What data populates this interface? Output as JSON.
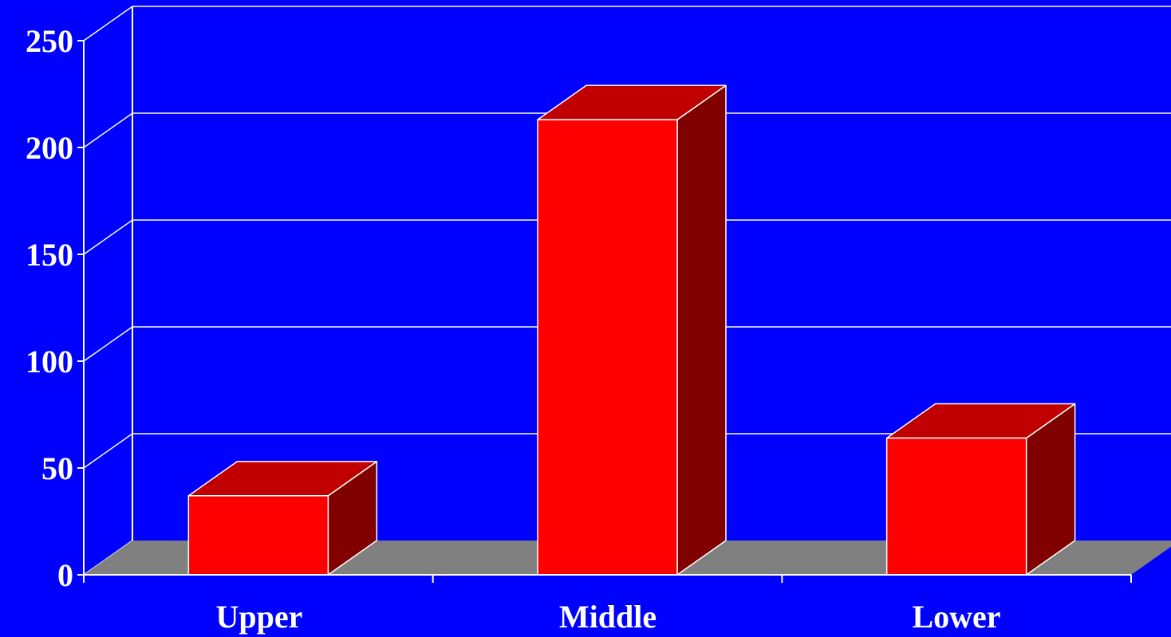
{
  "chart_data": {
    "type": "bar",
    "style": "3d",
    "categories": [
      "Upper",
      "Middle",
      "Lower"
    ],
    "values": [
      37,
      213,
      64
    ],
    "ylim": [
      0,
      250
    ],
    "yticks": [
      "0",
      "50",
      "100",
      "150",
      "200",
      "250"
    ],
    "title": "",
    "xlabel": "",
    "ylabel": "",
    "grid": true,
    "legend": "none",
    "colors": {
      "background": "#0000ff",
      "bar_front": "#ff0000",
      "bar_top": "#c00000",
      "bar_side": "#800000",
      "floor": "#808080",
      "grid": "#ffffff",
      "text": "#ffffff"
    }
  }
}
